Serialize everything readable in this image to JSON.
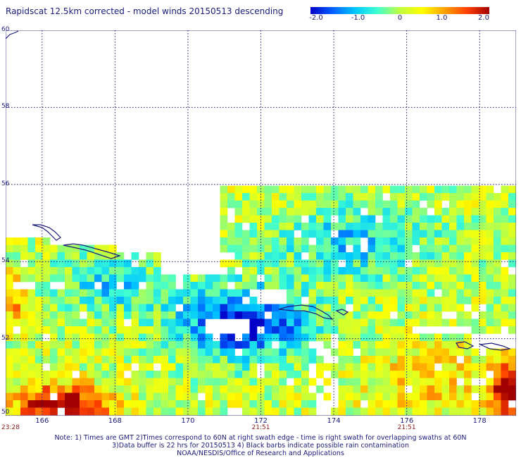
{
  "title": "Rapidscat 12.5km corrected - model winds 20150513 descending",
  "colorbar": {
    "min": -2.0,
    "max": 2.0,
    "ticks": [
      "-2.0",
      "-1.0",
      "0",
      "1.0",
      "2.0"
    ],
    "colors": [
      "#0000c8",
      "#0060ff",
      "#00c8ff",
      "#40ffd0",
      "#c0ff40",
      "#ffff00",
      "#ffa000",
      "#ff4000",
      "#a00000"
    ]
  },
  "map": {
    "lon_range": [
      165,
      179
    ],
    "lat_range": [
      50,
      60
    ],
    "lat_labels": [
      "60",
      "58",
      "56",
      "54",
      "52",
      "50"
    ],
    "lon_labels": [
      "166",
      "168",
      "170",
      "172",
      "174",
      "176",
      "178"
    ],
    "time_labels": [
      {
        "text": "23:28",
        "lon": 165
      },
      {
        "text": "21:51",
        "lon": 172
      },
      {
        "text": "21:51",
        "lon": 176
      }
    ],
    "coast_color": "#1a1a7a",
    "grid_color": "#1a1a7a"
  },
  "notes": [
    "Note: 1) Times are GMT 2)Times correspond to 60N at right swath edge - time is right swath for overlapping swaths at 60N",
    "3)Data buffer is 22 hrs for 20150513 4) Black barbs indicate possible rain contamination",
    "NOAA/NESDIS/Office of Research and Applications"
  ]
}
